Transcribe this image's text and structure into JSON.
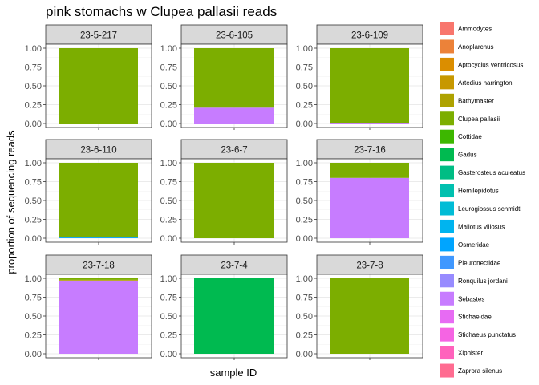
{
  "chart_data": {
    "type": "bar",
    "subtype": "stacked-bar-facets",
    "title": "pink stomachs w Clupea pallasii reads",
    "xlabel": "sample ID",
    "ylabel": "proportion of sequencing reads",
    "ylim": [
      0,
      1
    ],
    "y_ticks": [
      "0.00",
      "0.25",
      "0.50",
      "0.75",
      "1.00"
    ],
    "grid": true,
    "legend_position": "right",
    "legend": [
      {
        "name": "Ammodytes",
        "color": "#F8766D"
      },
      {
        "name": "Anoplarchus",
        "color": "#EC8239"
      },
      {
        "name": "Aptocyclus ventricosus",
        "color": "#DB8E00"
      },
      {
        "name": "Artedius harringtoni",
        "color": "#C79800"
      },
      {
        "name": "Bathymaster",
        "color": "#AEA200"
      },
      {
        "name": "Clupea pallasii",
        "color": "#7CAE00"
      },
      {
        "name": "Cottidae",
        "color": "#3DB700"
      },
      {
        "name": "Gadus",
        "color": "#00BA50"
      },
      {
        "name": "Gasterosteus aculeatus",
        "color": "#00BD84"
      },
      {
        "name": "Hemilepidotus",
        "color": "#00C0AF"
      },
      {
        "name": "Leurogiossus schmidti",
        "color": "#00BCD6"
      },
      {
        "name": "Mallotus villosus",
        "color": "#00B4EF"
      },
      {
        "name": "Osmeridae",
        "color": "#00A5FF"
      },
      {
        "name": "Pleuronectidae",
        "color": "#4098FF"
      },
      {
        "name": "Ronquilus jordani",
        "color": "#978BFF"
      },
      {
        "name": "Sebastes",
        "color": "#C77CFF"
      },
      {
        "name": "Stichaeidae",
        "color": "#E76BF3"
      },
      {
        "name": "Stichaeus punctatus",
        "color": "#F564E3"
      },
      {
        "name": "Xiphister",
        "color": "#FF62BC"
      },
      {
        "name": "Zaprora silenus",
        "color": "#FF6C91"
      }
    ],
    "facets": [
      {
        "label": "23-5-217",
        "segments": [
          {
            "taxon": "Clupea pallasii",
            "value": 1.0
          }
        ]
      },
      {
        "label": "23-6-105",
        "segments": [
          {
            "taxon": "Sebastes",
            "value": 0.21
          },
          {
            "taxon": "Clupea pallasii",
            "value": 0.79
          }
        ]
      },
      {
        "label": "23-6-109",
        "segments": [
          {
            "taxon": "Sebastes",
            "value": 0.01
          },
          {
            "taxon": "Clupea pallasii",
            "value": 0.99
          }
        ]
      },
      {
        "label": "23-6-110",
        "segments": [
          {
            "taxon": "Osmeridae",
            "value": 0.01
          },
          {
            "taxon": "Bathymaster",
            "value": 0.01
          },
          {
            "taxon": "Clupea pallasii",
            "value": 0.98
          }
        ]
      },
      {
        "label": "23-6-7",
        "segments": [
          {
            "taxon": "Clupea pallasii",
            "value": 1.0
          }
        ]
      },
      {
        "label": "23-7-16",
        "segments": [
          {
            "taxon": "Sebastes",
            "value": 0.8
          },
          {
            "taxon": "Clupea pallasii",
            "value": 0.2
          }
        ]
      },
      {
        "label": "23-7-18",
        "segments": [
          {
            "taxon": "Sebastes",
            "value": 0.97
          },
          {
            "taxon": "Bathymaster",
            "value": 0.01
          },
          {
            "taxon": "Clupea pallasii",
            "value": 0.02
          }
        ]
      },
      {
        "label": "23-7-4",
        "segments": [
          {
            "taxon": "Gadus",
            "value": 1.0
          }
        ]
      },
      {
        "label": "23-7-8",
        "segments": [
          {
            "taxon": "Clupea pallasii",
            "value": 1.0
          }
        ]
      }
    ]
  }
}
